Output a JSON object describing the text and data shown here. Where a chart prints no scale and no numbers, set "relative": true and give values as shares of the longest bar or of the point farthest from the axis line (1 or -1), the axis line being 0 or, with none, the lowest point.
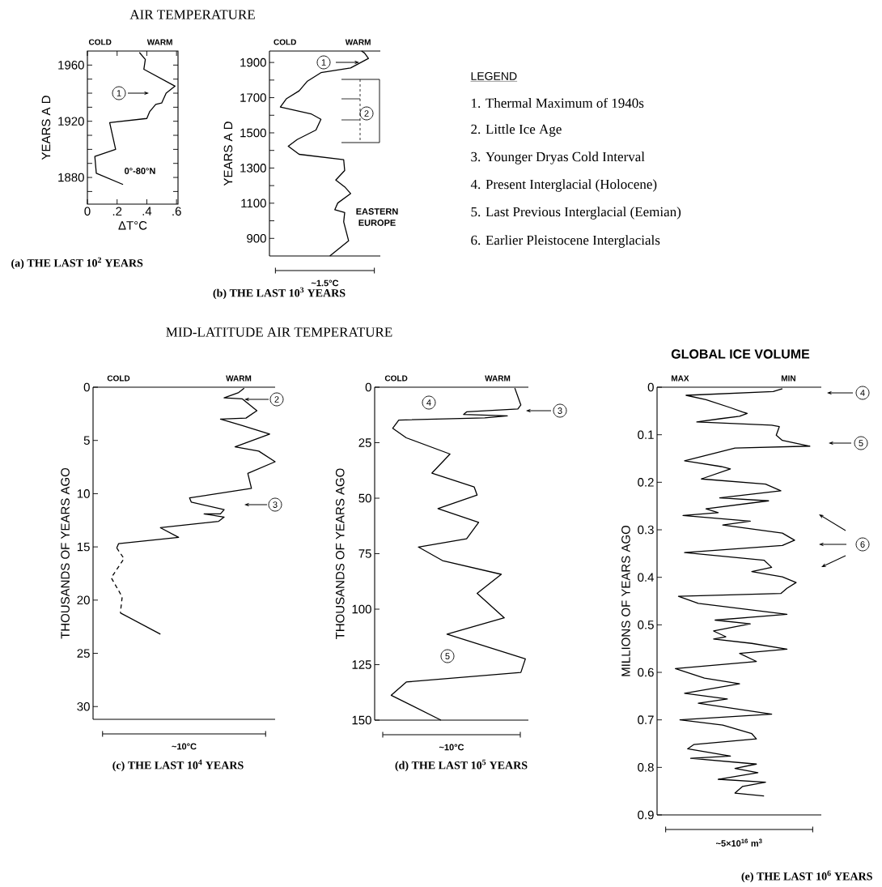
{
  "chart_data": [
    {
      "type": "line",
      "orientation": "horizontal",
      "title": "AIR TEMPERATURE",
      "xlabel": "ΔT°C",
      "ylabel": "YEARS A D",
      "xlim": [
        0,
        0.61
      ],
      "xticks": [
        0,
        {
          "value": 0.2,
          "label": ".2"
        },
        {
          "value": 0.4,
          "label": ".4"
        },
        {
          "value": 0.6,
          "label": ".6"
        }
      ],
      "ylim": [
        1861,
        1970
      ],
      "yticks": [
        {
          "value": 1870,
          "label": null
        },
        1880,
        {
          "value": 1890,
          "label": null
        },
        {
          "value": 1900,
          "label": null
        },
        {
          "value": 1910,
          "label": null
        },
        1920,
        {
          "value": 1930,
          "label": null
        },
        {
          "value": 1940,
          "label": null
        },
        {
          "value": 1950,
          "label": null
        },
        1960
      ],
      "series": [
        {
          "color": "#000000",
          "values": [
            0.35,
            0.39,
            0.38,
            0.59,
            0.53,
            0.5,
            0.46,
            0.42,
            0.4,
            0.15,
            0.19,
            0.05,
            0.06,
            0.24
          ],
          "x": [
            1969,
            1964,
            1957,
            1945,
            1940,
            1933,
            1932,
            1927,
            1922,
            1919,
            1900,
            1895,
            1883,
            1875
          ]
        }
      ],
      "annotations": [
        "COLD",
        "WARM",
        "(a) THE LAST 10$^{2}$ YEARS",
        "0°-80°N",
        "1"
      ]
    },
    {
      "type": "line",
      "orientation": "horizontal",
      "relative": true,
      "xlabel": "~1.5°C",
      "ylabel": "YEARS A D",
      "ylim": [
        800,
        1965
      ],
      "yticks": [
        900,
        {
          "value": 1000,
          "label": null
        },
        1100,
        {
          "value": 1200,
          "label": null
        },
        1300,
        {
          "value": 1400,
          "label": null
        },
        1500,
        {
          "value": 1600,
          "label": null
        },
        1700,
        {
          "value": 1800,
          "label": null
        },
        1900
      ],
      "series": [
        {
          "color": "#000000",
          "values": [
            0.61,
            0.8,
            0.75,
            0.76,
            0.66,
            0.69,
            0.82,
            0.76,
            0.67,
            0.76,
            0.75,
            0.3,
            0.19,
            0.28,
            0.47,
            0.52,
            0.42,
            0.11,
            0.17,
            0.3,
            0.38,
            0.52,
            0.82,
            1,
            0.96,
            0.93
          ],
          "x": [
            800,
            886,
            994,
            1047,
            1063,
            1101,
            1155,
            1193,
            1232,
            1286,
            1347,
            1378,
            1424,
            1462,
            1516,
            1577,
            1608,
            1647,
            1693,
            1739,
            1792,
            1842,
            1869,
            1923,
            1954,
            1965
          ]
        }
      ],
      "annotations": [
        "COLD",
        "WARM",
        "(b) THE LAST 10$^{3}$ YEARS",
        "EASTERN EUROPE",
        "1",
        "2"
      ]
    },
    {
      "type": "other",
      "title": "LEGEND",
      "annotations": [
        "1. Thermal Maximum of 1940s",
        "2. Little Ice Age",
        "3. Younger Dryas Cold Interval",
        "4. Present Interglacial (Holocene)",
        "5. Last Previous Interglacial (Eemian)",
        "6. Earlier Pleistocene Interglacials"
      ]
    },
    {
      "type": "line",
      "orientation": "horizontal",
      "relative": true,
      "title": "MID-LATITUDE AIR TEMPERATURE",
      "xlabel": "~10°C",
      "ylabel": "THOUSANDS OF YEARS AGO",
      "ylim": [
        31.2,
        0
      ],
      "yticks": [
        0,
        5,
        10,
        15,
        20,
        25,
        30
      ],
      "series": [
        {
          "color": "#000000",
          "values": [
            0.83,
            0.8,
            0.72,
            0.82,
            0.9,
            0.84,
            0.7,
            0.82,
            0.97,
            0.78,
            0.91,
            1.0,
            0.85,
            0.87,
            0.53,
            0.54,
            0.72,
            0.7,
            0.61,
            0.72,
            0.69,
            0.37,
            0.47,
            0.14,
            0.13,
            null,
            0.15,
            0.37
          ],
          "x": [
            0.1,
            0.5,
            1.0,
            1.1,
            2.2,
            2.9,
            3.0,
            3.6,
            4.4,
            5.6,
            6.0,
            7.0,
            8.1,
            9.5,
            10.4,
            10.8,
            11.5,
            11.9,
            11.9,
            12.2,
            12.6,
            13.2,
            14.1,
            14.7,
            15.1,
            null,
            21.2,
            23.2
          ]
        },
        {
          "color": "#000000",
          "line_style": "dashed",
          "values": [
            0.13,
            0.17,
            0.1,
            0.16,
            0.15
          ],
          "x": [
            15.1,
            16.1,
            17.9,
            19.7,
            21.2
          ]
        }
      ],
      "annotations": [
        "COLD",
        "WARM",
        "(c) THE LAST 10$^{4}$ YEARS",
        "2",
        "3"
      ]
    },
    {
      "type": "line",
      "orientation": "horizontal",
      "relative": true,
      "xlabel": "~10°C",
      "ylabel": "THOUSANDS OF YEARS AGO",
      "ylim": [
        150,
        0
      ],
      "yticks": [
        0,
        25,
        50,
        75,
        100,
        125,
        150
      ],
      "series": [
        {
          "color": "#000000",
          "values": [
            0.93,
            0.97,
            0.95,
            0.61,
            0.59,
            0.88,
            0.73,
            0.16,
            0.12,
            0.21,
            0.5,
            0.38,
            0.66,
            0.68,
            0.42,
            0.69,
            0.61,
            0.29,
            0.45,
            0.84,
            0.68,
            0.86,
            0.48,
            1,
            0.97,
            0.21,
            0.11,
            0.44
          ],
          "x": [
            0.4,
            8.0,
            9.8,
            11.1,
            12.3,
            12.9,
            13.8,
            14.8,
            18.5,
            22.8,
            30.1,
            38.7,
            44.9,
            48.6,
            54.7,
            60.9,
            68.3,
            72.0,
            78.1,
            84.3,
            92.9,
            103.9,
            111.3,
            122.4,
            128.5,
            132.8,
            138.8,
            150
          ]
        }
      ],
      "annotations": [
        "COLD",
        "WARM",
        "(d) THE LAST 10$^{5}$ YEARS",
        "4",
        "3",
        "5"
      ]
    },
    {
      "type": "line",
      "orientation": "horizontal",
      "relative": true,
      "title": "GLOBAL ICE VOLUME",
      "xlabel": "~5×10$^{16}$ m$^{3}$",
      "ylabel": "MILLIONS OF YEARS AGO",
      "ylim": [
        0.9,
        0
      ],
      "yticks": [
        0,
        0.1,
        0.2,
        0.3,
        0.4,
        0.5,
        0.6,
        0.7,
        0.8,
        0.9
      ],
      "series": [
        {
          "color": "#000000",
          "values": [
            0.82,
            0.76,
            0.19,
            0.32,
            0.48,
            0.56,
            0.59,
            0.54,
            0.42,
            0.26,
            0.75,
            0.8,
            0.78,
            0.82,
            1,
            0.51,
            0.18,
            0.24,
            0.42,
            0.48,
            0.29,
            0.71,
            0.81,
            0.41,
            0.73,
            0.32,
            0.4,
            0.17,
            0.61,
            0.43,
            0.82,
            0.9,
            0.82,
            0.18,
            0.7,
            0.75,
            0.62,
            0.82,
            0.91,
            0.85,
            0.81,
            0.14,
            0.27,
            0.85,
            0.38,
            0.61,
            0.37,
            0.45,
            0.37,
            0.62,
            0.85,
            0.54,
            0.65,
            0.12,
            0.31,
            0.54,
            0.18,
            0.46,
            0.27,
            0.75,
            0.15,
            0.43,
            0.62,
            0.65,
            0.24,
            0.2,
            0.48,
            0.22,
            0.65,
            0.51,
            0.66,
            0.4,
            0.71,
            0.56,
            0.51,
            0.7
          ],
          "x": [
            0.003,
            0.009,
            0.017,
            0.026,
            0.043,
            0.052,
            0.055,
            0.061,
            0.066,
            0.073,
            0.08,
            0.083,
            0.101,
            0.112,
            0.124,
            0.128,
            0.155,
            0.158,
            0.167,
            0.172,
            0.193,
            0.204,
            0.218,
            0.233,
            0.239,
            0.256,
            0.264,
            0.27,
            0.282,
            0.29,
            0.307,
            0.322,
            0.333,
            0.348,
            0.364,
            0.379,
            0.388,
            0.399,
            0.411,
            0.423,
            0.434,
            0.44,
            0.455,
            0.478,
            0.49,
            0.498,
            0.513,
            0.525,
            0.53,
            0.539,
            0.551,
            0.56,
            0.577,
            0.592,
            0.612,
            0.624,
            0.644,
            0.656,
            0.665,
            0.688,
            0.7,
            0.711,
            0.729,
            0.74,
            0.752,
            0.761,
            0.776,
            0.781,
            0.793,
            0.802,
            0.811,
            0.825,
            0.831,
            0.84,
            0.854,
            0.86
          ]
        }
      ],
      "annotations": [
        "MAX",
        "MIN",
        "(e) THE LAST 10$^{6}$ YEARS",
        "4",
        "5",
        "6"
      ]
    }
  ]
}
